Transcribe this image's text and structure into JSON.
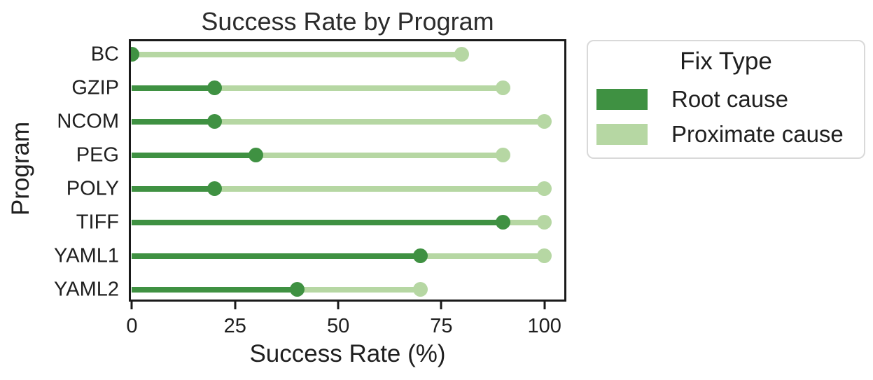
{
  "chart_data": {
    "type": "dumbbell",
    "title": "Success Rate by Program",
    "xlabel": "Success Rate (%)",
    "ylabel": "Program",
    "categories": [
      "BC",
      "GZIP",
      "NCOM",
      "PEG",
      "POLY",
      "TIFF",
      "YAML1",
      "YAML2"
    ],
    "series": [
      {
        "name": "Root cause",
        "color": "#3f9142",
        "values": [
          0,
          20,
          20,
          30,
          20,
          90,
          70,
          40
        ]
      },
      {
        "name": "Proximate cause",
        "color": "#b6d7a3",
        "values": [
          80,
          90,
          100,
          90,
          100,
          100,
          100,
          70
        ]
      }
    ],
    "x_ticks": [
      0,
      25,
      50,
      75,
      100
    ],
    "xlim": [
      -0.25,
      104.8
    ],
    "grid": false,
    "legend": {
      "title": "Fix Type",
      "position": "outside-right"
    },
    "colors": {
      "axis": "#1a1a1a",
      "text": "#1f1f1f"
    }
  }
}
